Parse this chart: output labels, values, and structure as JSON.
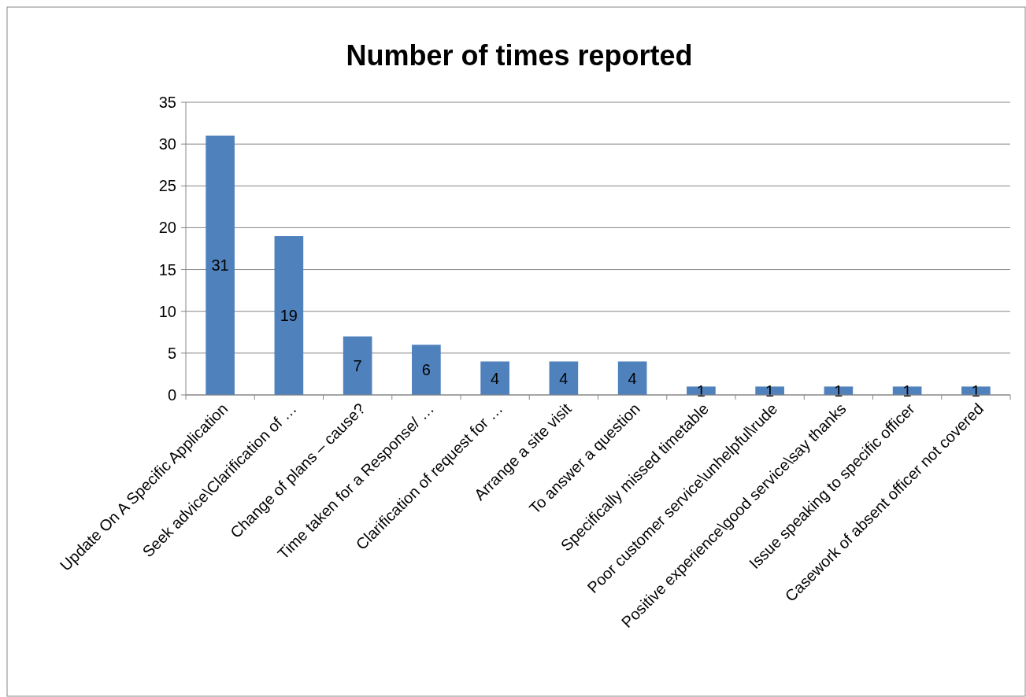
{
  "chart_data": {
    "type": "bar",
    "title": "Number of times reported",
    "categories": [
      "Update On A Specific Application",
      "Seek advice\\Clarification of …",
      "Change of plans – cause?",
      "Time taken for a Response/ …",
      "Clarification of request for …",
      "Arrange a site visit",
      "To answer a question",
      "Specifically missed timetable",
      "Poor customer service\\unhelpful\\rude",
      "Positive experience\\good service\\say thanks",
      "Issue speaking to specific officer",
      "Casework of absent officer not covered"
    ],
    "values": [
      31,
      19,
      7,
      6,
      4,
      4,
      4,
      1,
      1,
      1,
      1,
      1
    ],
    "color": "#4f81bd",
    "ylim": [
      0,
      35
    ],
    "yticks": [
      0,
      5,
      10,
      15,
      20,
      25,
      30,
      35
    ],
    "grid": "y",
    "data_labels": true
  }
}
